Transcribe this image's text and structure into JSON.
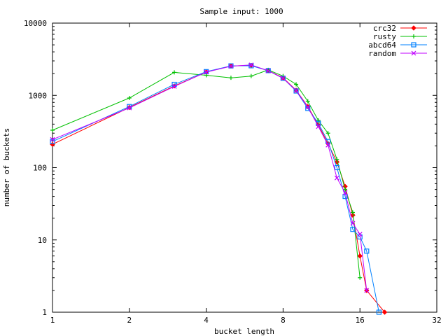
{
  "chart_data": {
    "type": "line",
    "title": "Sample input: 1000",
    "xlabel": "bucket length",
    "ylabel": "number of buckets",
    "xscale": "log2",
    "yscale": "log10",
    "xlim": [
      1,
      32
    ],
    "ylim": [
      1,
      10000
    ],
    "xticks": [
      1,
      2,
      4,
      8,
      16,
      32
    ],
    "xtick_labels": [
      "1",
      "2",
      "4",
      "8",
      "16",
      "32"
    ],
    "yticks": [
      1,
      10,
      100,
      1000,
      10000
    ],
    "ytick_labels": [
      "1",
      "10",
      "100",
      "1000",
      "10000"
    ],
    "grid": false,
    "legend_position": "top-right",
    "series": [
      {
        "name": "crc32",
        "color": "#ff0000",
        "marker": "diamond",
        "points": [
          [
            1,
            210
          ],
          [
            2,
            680
          ],
          [
            3,
            1350
          ],
          [
            4,
            2100
          ],
          [
            5,
            2550
          ],
          [
            6,
            2600
          ],
          [
            7,
            2200
          ],
          [
            8,
            1750
          ],
          [
            9,
            1180
          ],
          [
            10,
            700
          ],
          [
            11,
            390
          ],
          [
            12,
            215
          ],
          [
            13,
            120
          ],
          [
            14,
            55
          ],
          [
            15,
            22
          ],
          [
            16,
            6
          ],
          [
            17,
            2
          ],
          [
            20,
            1
          ]
        ]
      },
      {
        "name": "rusty",
        "color": "#00c000",
        "marker": "plus",
        "points": [
          [
            1,
            330
          ],
          [
            2,
            920
          ],
          [
            3,
            2080
          ],
          [
            4,
            1900
          ],
          [
            5,
            1750
          ],
          [
            6,
            1850
          ],
          [
            7,
            2250
          ],
          [
            8,
            1850
          ],
          [
            9,
            1420
          ],
          [
            10,
            830
          ],
          [
            11,
            450
          ],
          [
            12,
            300
          ],
          [
            13,
            130
          ],
          [
            14,
            50
          ],
          [
            15,
            24
          ],
          [
            16,
            3
          ]
        ]
      },
      {
        "name": "abcd64",
        "color": "#0080ff",
        "marker": "square",
        "points": [
          [
            1,
            230
          ],
          [
            2,
            700
          ],
          [
            3,
            1420
          ],
          [
            4,
            2130
          ],
          [
            5,
            2560
          ],
          [
            6,
            2570
          ],
          [
            7,
            2200
          ],
          [
            8,
            1720
          ],
          [
            9,
            1150
          ],
          [
            10,
            660
          ],
          [
            11,
            410
          ],
          [
            12,
            230
          ],
          [
            13,
            100
          ],
          [
            14,
            40
          ],
          [
            15,
            14
          ],
          [
            16,
            11
          ],
          [
            17,
            7
          ],
          [
            19,
            1
          ]
        ]
      },
      {
        "name": "random",
        "color": "#c000ff",
        "marker": "x",
        "points": [
          [
            1,
            245
          ],
          [
            2,
            670
          ],
          [
            3,
            1330
          ],
          [
            4,
            2100
          ],
          [
            5,
            2530
          ],
          [
            6,
            2640
          ],
          [
            7,
            2190
          ],
          [
            8,
            1730
          ],
          [
            9,
            1170
          ],
          [
            10,
            690
          ],
          [
            11,
            370
          ],
          [
            12,
            205
          ],
          [
            13,
            72
          ],
          [
            14,
            45
          ],
          [
            15,
            17
          ],
          [
            16,
            12
          ],
          [
            17,
            2
          ]
        ]
      }
    ]
  }
}
